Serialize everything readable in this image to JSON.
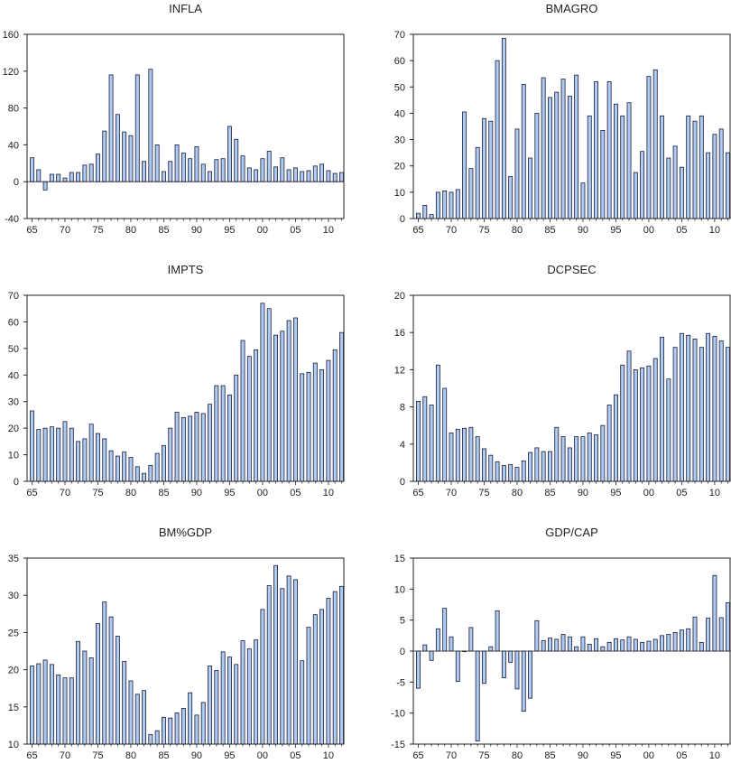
{
  "colors": {
    "bar_fill": "#aecbf0",
    "bar_stroke": "#1a1a3a",
    "axis": "#222222",
    "background": "#ffffff"
  },
  "chart_data": [
    {
      "type": "bar",
      "title": "INFLA",
      "x": [
        1965,
        1966,
        1967,
        1968,
        1969,
        1970,
        1971,
        1972,
        1973,
        1974,
        1975,
        1976,
        1977,
        1978,
        1979,
        1980,
        1981,
        1982,
        1983,
        1984,
        1985,
        1986,
        1987,
        1988,
        1989,
        1990,
        1991,
        1992,
        1993,
        1994,
        1995,
        1996,
        1997,
        1998,
        1999,
        2000,
        2001,
        2002,
        2003,
        2004,
        2005,
        2006,
        2007,
        2008,
        2009,
        2010,
        2011,
        2012
      ],
      "values": [
        26,
        13,
        -9,
        8,
        8,
        4,
        10,
        10,
        18,
        19,
        30,
        55,
        116,
        73,
        54,
        50,
        116,
        22,
        122,
        40,
        11,
        22,
        40,
        31,
        25,
        38,
        19,
        11,
        24,
        25,
        60,
        46,
        28,
        15,
        13,
        25,
        33,
        16,
        26,
        13,
        15,
        11,
        12,
        17,
        19,
        12,
        9,
        10
      ],
      "ylim": [
        -40,
        160
      ],
      "yticks": [
        "-40",
        "0",
        "40",
        "80",
        "120",
        "160"
      ],
      "yticks_values": [
        -40,
        0,
        40,
        80,
        120,
        160
      ],
      "xtick_labels": [
        "65",
        "70",
        "75",
        "80",
        "85",
        "90",
        "95",
        "00",
        "05",
        "10"
      ],
      "xtick_years": [
        1965,
        1970,
        1975,
        1980,
        1985,
        1990,
        1995,
        2000,
        2005,
        2010
      ]
    },
    {
      "type": "bar",
      "title": "BMAGRO",
      "x": [
        1965,
        1966,
        1967,
        1968,
        1969,
        1970,
        1971,
        1972,
        1973,
        1974,
        1975,
        1976,
        1977,
        1978,
        1979,
        1980,
        1981,
        1982,
        1983,
        1984,
        1985,
        1986,
        1987,
        1988,
        1989,
        1990,
        1991,
        1992,
        1993,
        1994,
        1995,
        1996,
        1997,
        1998,
        1999,
        2000,
        2001,
        2002,
        2003,
        2004,
        2005,
        2006,
        2007,
        2008,
        2009,
        2010,
        2011,
        2012
      ],
      "values": [
        2,
        5,
        1.5,
        10,
        10.5,
        10,
        11,
        40.5,
        19,
        27,
        38,
        37,
        60,
        68.5,
        16,
        34,
        51,
        23,
        40,
        53.5,
        46,
        48,
        53,
        46.5,
        54.5,
        13.5,
        39,
        52,
        33.5,
        52,
        43.5,
        39,
        44,
        17.5,
        25.5,
        54,
        56.5,
        39,
        23,
        27.5,
        19.5,
        39,
        37,
        39,
        25,
        32,
        34,
        25
      ],
      "ylim": [
        0,
        70
      ],
      "yticks": [
        "0",
        "10",
        "20",
        "30",
        "40",
        "50",
        "60",
        "70"
      ],
      "yticks_values": [
        0,
        10,
        20,
        30,
        40,
        50,
        60,
        70
      ],
      "xtick_labels": [
        "65",
        "70",
        "75",
        "80",
        "85",
        "90",
        "95",
        "00",
        "05",
        "10"
      ],
      "xtick_years": [
        1965,
        1970,
        1975,
        1980,
        1985,
        1990,
        1995,
        2000,
        2005,
        2010
      ]
    },
    {
      "type": "bar",
      "title": "IMPTS",
      "x": [
        1965,
        1966,
        1967,
        1968,
        1969,
        1970,
        1971,
        1972,
        1973,
        1974,
        1975,
        1976,
        1977,
        1978,
        1979,
        1980,
        1981,
        1982,
        1983,
        1984,
        1985,
        1986,
        1987,
        1988,
        1989,
        1990,
        1991,
        1992,
        1993,
        1994,
        1995,
        1996,
        1997,
        1998,
        1999,
        2000,
        2001,
        2002,
        2003,
        2004,
        2005,
        2006,
        2007,
        2008,
        2009,
        2010,
        2011,
        2012
      ],
      "values": [
        26.5,
        19.5,
        20,
        20.5,
        20,
        22.5,
        20,
        15,
        16,
        21.5,
        18,
        16,
        11.5,
        9.5,
        11,
        9,
        5.5,
        3,
        6,
        10.5,
        13.5,
        20,
        26,
        24,
        24.5,
        26,
        25.5,
        29,
        36,
        36,
        32.5,
        40,
        53,
        47,
        49.5,
        67,
        65,
        55,
        56.5,
        60.5,
        61.5,
        40.5,
        41,
        44.5,
        42,
        45.5,
        49.5,
        56
      ],
      "ylim": [
        0,
        70
      ],
      "yticks": [
        "0",
        "10",
        "20",
        "30",
        "40",
        "50",
        "60",
        "70"
      ],
      "yticks_values": [
        0,
        10,
        20,
        30,
        40,
        50,
        60,
        70
      ],
      "xtick_labels": [
        "65",
        "70",
        "75",
        "80",
        "85",
        "90",
        "95",
        "00",
        "05",
        "10"
      ],
      "xtick_years": [
        1965,
        1970,
        1975,
        1980,
        1985,
        1990,
        1995,
        2000,
        2005,
        2010
      ]
    },
    {
      "type": "bar",
      "title": "DCPSEC",
      "x": [
        1965,
        1966,
        1967,
        1968,
        1969,
        1970,
        1971,
        1972,
        1973,
        1974,
        1975,
        1976,
        1977,
        1978,
        1979,
        1980,
        1981,
        1982,
        1983,
        1984,
        1985,
        1986,
        1987,
        1988,
        1989,
        1990,
        1991,
        1992,
        1993,
        1994,
        1995,
        1996,
        1997,
        1998,
        1999,
        2000,
        2001,
        2002,
        2003,
        2004,
        2005,
        2006,
        2007,
        2008,
        2009,
        2010,
        2011,
        2012
      ],
      "values": [
        8.6,
        9.1,
        8.2,
        12.5,
        10,
        5.2,
        5.6,
        5.7,
        5.8,
        4.8,
        3.5,
        2.8,
        2.1,
        1.7,
        1.8,
        1.5,
        2.2,
        3.1,
        3.6,
        3.2,
        3.2,
        5.8,
        4.8,
        3.6,
        4.8,
        4.8,
        5.2,
        5,
        6,
        8.2,
        9.3,
        12.5,
        14,
        12,
        12.2,
        12.4,
        13.2,
        15.5,
        11,
        14.4,
        15.9,
        15.7,
        15.3,
        14.4,
        15.9,
        15.6,
        15.1,
        14.4
      ],
      "ylim": [
        0,
        20
      ],
      "yticks": [
        "0",
        "4",
        "8",
        "12",
        "16",
        "20"
      ],
      "yticks_values": [
        0,
        4,
        8,
        12,
        16,
        20
      ],
      "xtick_labels": [
        "65",
        "70",
        "75",
        "80",
        "85",
        "90",
        "95",
        "00",
        "05",
        "10"
      ],
      "xtick_years": [
        1965,
        1970,
        1975,
        1980,
        1985,
        1990,
        1995,
        2000,
        2005,
        2010
      ]
    },
    {
      "type": "bar",
      "title": "BM%GDP",
      "x": [
        1965,
        1966,
        1967,
        1968,
        1969,
        1970,
        1971,
        1972,
        1973,
        1974,
        1975,
        1976,
        1977,
        1978,
        1979,
        1980,
        1981,
        1982,
        1983,
        1984,
        1985,
        1986,
        1987,
        1988,
        1989,
        1990,
        1991,
        1992,
        1993,
        1994,
        1995,
        1996,
        1997,
        1998,
        1999,
        2000,
        2001,
        2002,
        2003,
        2004,
        2005,
        2006,
        2007,
        2008,
        2009,
        2010,
        2011,
        2012
      ],
      "values": [
        20.5,
        20.8,
        21.3,
        20.7,
        19.3,
        18.9,
        18.9,
        23.8,
        22.5,
        21.6,
        26.2,
        29.1,
        27.1,
        24.5,
        21.1,
        18.5,
        16.7,
        17.2,
        11.3,
        11.8,
        13.6,
        13.5,
        14.2,
        14.8,
        16.9,
        13.9,
        15.6,
        20.5,
        19.9,
        22.4,
        21.7,
        20.7,
        23.9,
        22.8,
        24,
        28.1,
        31.3,
        34,
        30.9,
        32.6,
        32.1,
        21.2,
        25.7,
        27.4,
        28.1,
        29.6,
        30.5,
        31.2
      ],
      "ylim": [
        10,
        35
      ],
      "yticks": [
        "10",
        "15",
        "20",
        "25",
        "30",
        "35"
      ],
      "yticks_values": [
        10,
        15,
        20,
        25,
        30,
        35
      ],
      "xtick_labels": [
        "65",
        "70",
        "75",
        "80",
        "85",
        "90",
        "95",
        "00",
        "05",
        "10"
      ],
      "xtick_years": [
        1965,
        1970,
        1975,
        1980,
        1985,
        1990,
        1995,
        2000,
        2005,
        2010
      ]
    },
    {
      "type": "bar",
      "title": "GDP/CAP",
      "x": [
        1965,
        1966,
        1967,
        1968,
        1969,
        1970,
        1971,
        1972,
        1973,
        1974,
        1975,
        1976,
        1977,
        1978,
        1979,
        1980,
        1981,
        1982,
        1983,
        1984,
        1985,
        1986,
        1987,
        1988,
        1989,
        1990,
        1991,
        1992,
        1993,
        1994,
        1995,
        1996,
        1997,
        1998,
        1999,
        2000,
        2001,
        2002,
        2003,
        2004,
        2005,
        2006,
        2007,
        2008,
        2009,
        2010,
        2011,
        2012
      ],
      "values": [
        -6,
        1,
        -1.5,
        3.6,
        6.9,
        2.3,
        -4.9,
        0,
        3.8,
        -14.5,
        -5.2,
        0.7,
        6.5,
        -4.3,
        -1.8,
        -6.1,
        -9.7,
        -7.6,
        4.9,
        1.7,
        2.1,
        1.9,
        2.7,
        2.3,
        0.7,
        2.3,
        1.1,
        2,
        0.7,
        1.4,
        2,
        1.8,
        2.3,
        1.9,
        1.4,
        1.6,
        1.9,
        2.5,
        2.7,
        3,
        3.4,
        3.6,
        5.5,
        1.4,
        5.3,
        12.2,
        5.4,
        7.8
      ],
      "ylim": [
        -15,
        15
      ],
      "yticks": [
        "-15",
        "-10",
        "-5",
        "0",
        "5",
        "10",
        "15"
      ],
      "yticks_values": [
        -15,
        -10,
        -5,
        0,
        5,
        10,
        15
      ],
      "xtick_labels": [
        "65",
        "70",
        "75",
        "80",
        "85",
        "90",
        "95",
        "00",
        "05",
        "10"
      ],
      "xtick_years": [
        1965,
        1970,
        1975,
        1980,
        1985,
        1990,
        1995,
        2000,
        2005,
        2010
      ]
    }
  ]
}
